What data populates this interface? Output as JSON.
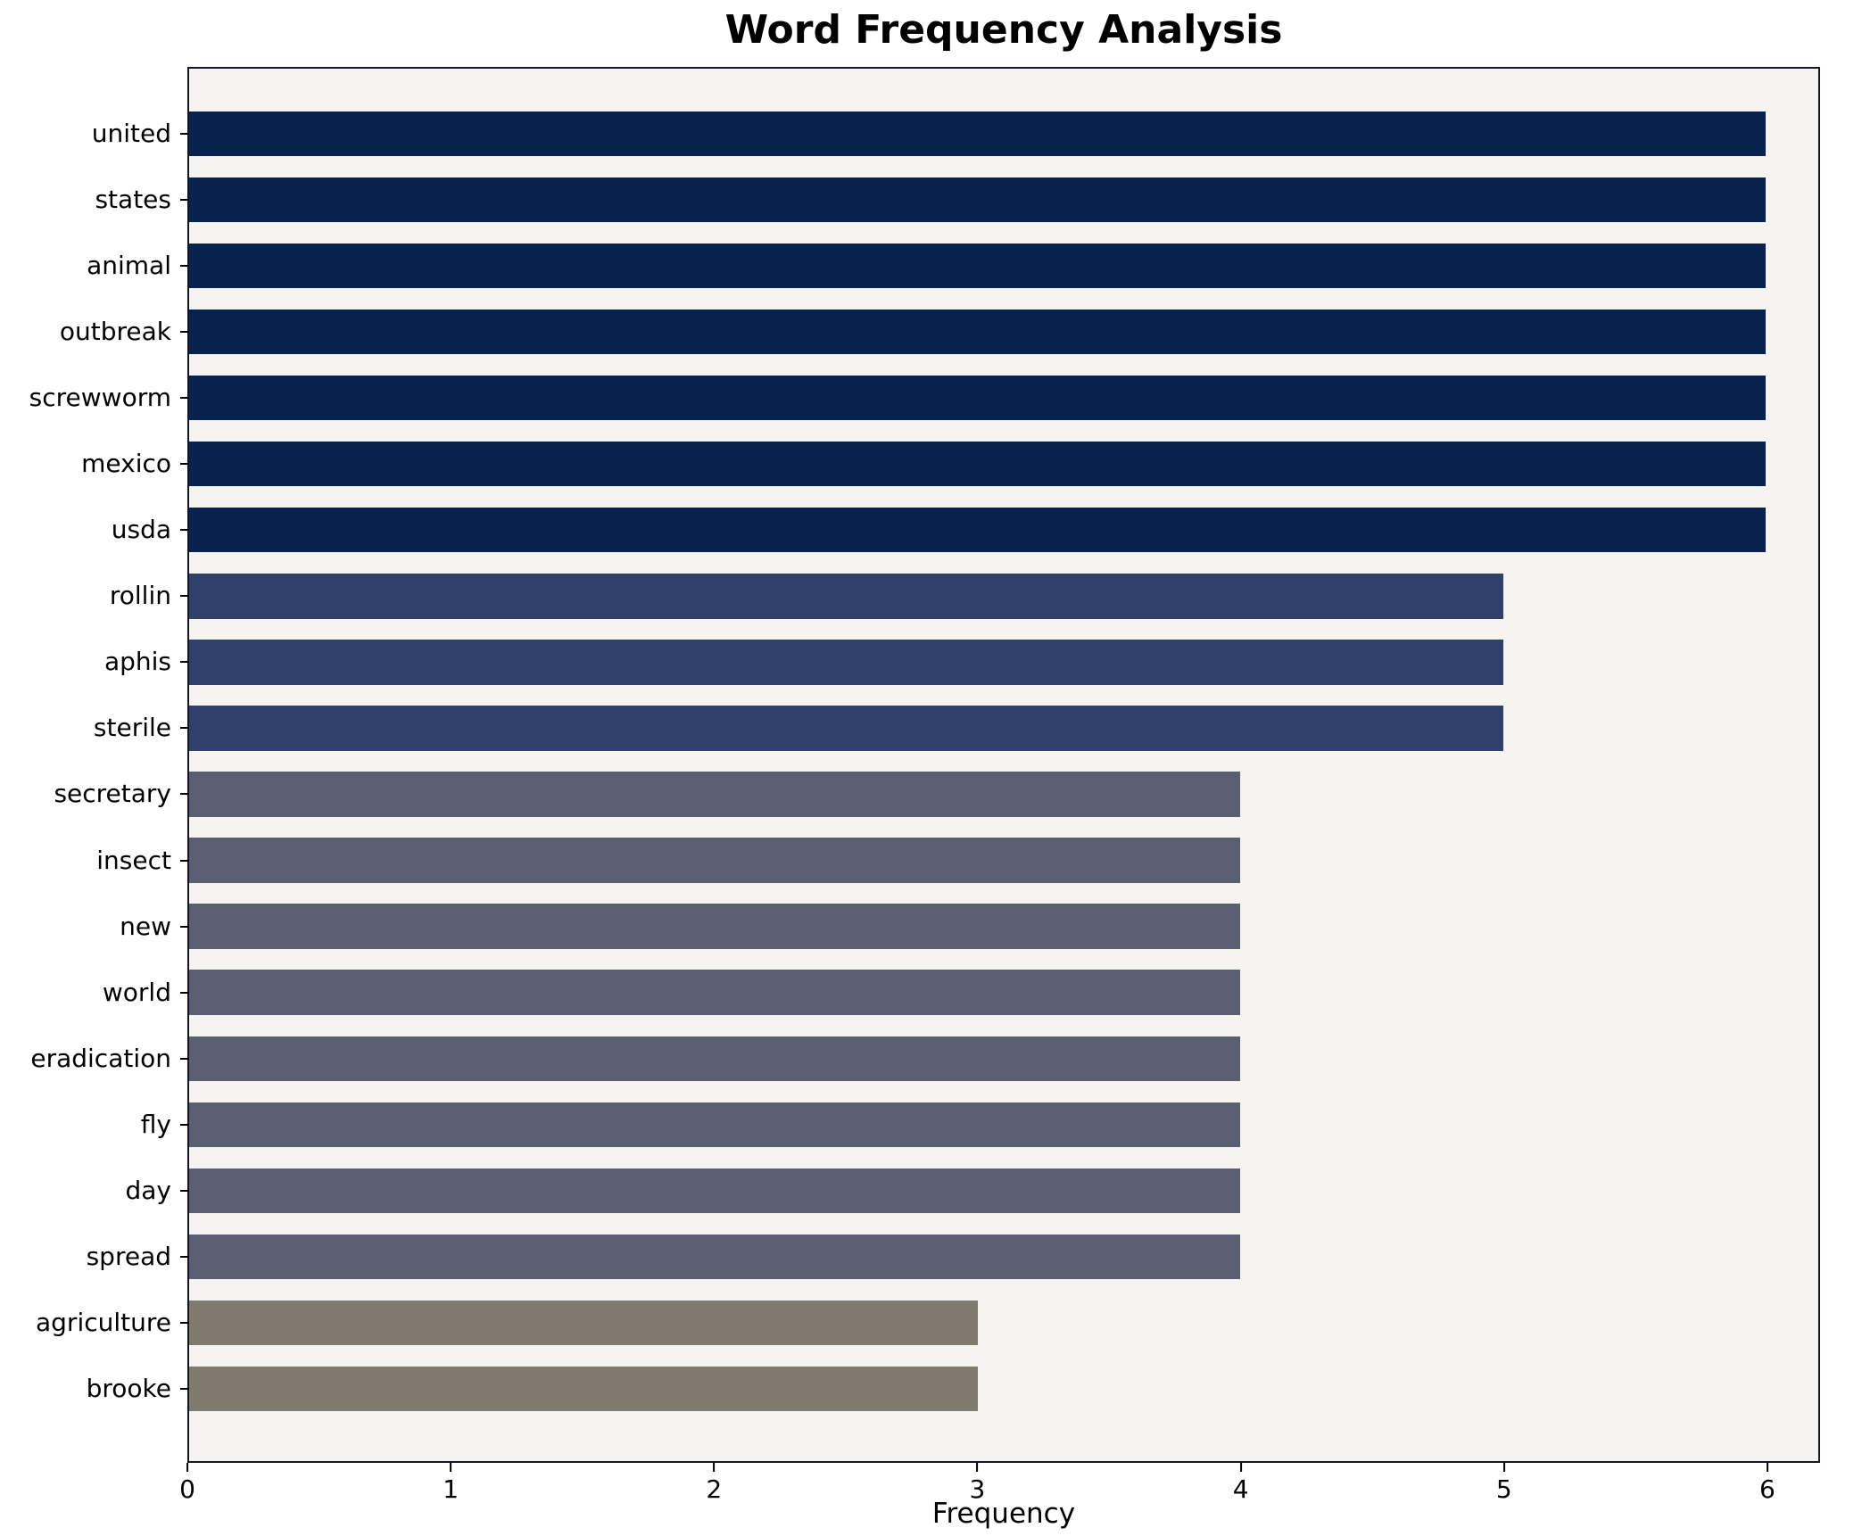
{
  "chart_data": {
    "type": "bar",
    "orientation": "horizontal",
    "title": "Word Frequency Analysis",
    "xlabel": "Frequency",
    "ylabel": "",
    "categories": [
      "united",
      "states",
      "animal",
      "outbreak",
      "screwworm",
      "mexico",
      "usda",
      "rollin",
      "aphis",
      "sterile",
      "secretary",
      "insect",
      "new",
      "world",
      "eradication",
      "fly",
      "day",
      "spread",
      "agriculture",
      "brooke"
    ],
    "values": [
      6,
      6,
      6,
      6,
      6,
      6,
      6,
      5,
      5,
      5,
      4,
      4,
      4,
      4,
      4,
      4,
      4,
      4,
      3,
      3
    ],
    "xticks": [
      0,
      1,
      2,
      3,
      4,
      5,
      6
    ],
    "xlim": [
      0,
      6.2
    ],
    "grid": false,
    "legend": null,
    "colors": {
      "value_6": "#07224e",
      "value_5": "#2f416b",
      "value_4": "#595e71",
      "value_3": "#7e7a6e"
    },
    "plot_background": "#f5f4f1",
    "figure_background": "#ffffff",
    "axis_color": "#15152a"
  }
}
